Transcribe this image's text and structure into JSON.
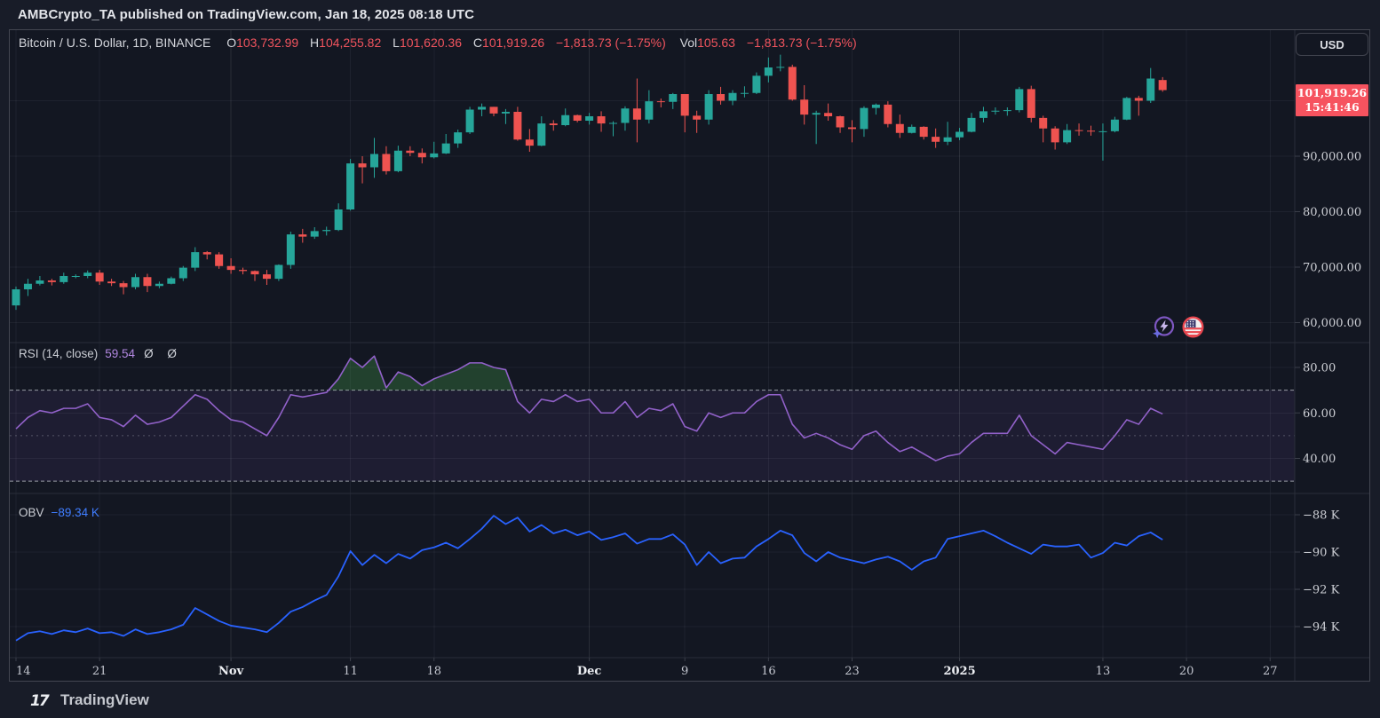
{
  "header": {
    "text": "AMBCrypto_TA published on TradingView.com, Jan 18, 2025 08:18 UTC"
  },
  "legend": {
    "symbol": "Bitcoin / U.S. Dollar, 1D, BINANCE",
    "o_label": "O",
    "o_value": "103,732.99",
    "h_label": "H",
    "h_value": "104,255.82",
    "l_label": "L",
    "l_value": "101,620.36",
    "c_label": "C",
    "c_value": "101,919.26",
    "change": "−1,813.73 (−1.75%)",
    "vol_label": "Vol",
    "vol_value": "105.63",
    "vol_change": "−1,813.73 (−1.75%)"
  },
  "currency_button": "USD",
  "price_badge": {
    "price": "101,919.26",
    "countdown": "15:41:46"
  },
  "rsi_legend": {
    "title": "RSI (14, close)",
    "value": "59.54",
    "extra": "Ø Ø"
  },
  "obv_legend": {
    "title": "OBV",
    "value": "−89.34 K"
  },
  "footer": {
    "brand": "TradingView",
    "logo_mark": "17"
  },
  "colors": {
    "background": "#131722",
    "page": "#181c28",
    "up": "#26a69a",
    "down": "#ef5350",
    "rsi_line": "#9161c9",
    "rsi_band_fill": "rgba(126,87,194,0.10)",
    "rsi_overbought_fill": "rgba(76,175,80,0.28)",
    "obv_line": "#2962ff",
    "badge": "#f6535f",
    "legend_red": "#f1545e",
    "grid": "rgba(240,243,250,0.055)",
    "divider": "#2a2e39",
    "axis_text": "#ced0d6"
  },
  "chart_data": {
    "type": "candlestick",
    "symbol": "BTCUSD BINANCE 1D",
    "pane_layout": [
      "price",
      "rsi",
      "obv"
    ],
    "price_axis": [
      {
        "label": "90,000.00",
        "value": 90000
      },
      {
        "label": "80,000.00",
        "value": 80000
      },
      {
        "label": "70,000.00",
        "value": 70000
      },
      {
        "label": "60,000.00",
        "value": 60000
      }
    ],
    "price_gridlines": [
      100000,
      90000,
      80000,
      70000,
      60000
    ],
    "rsi_axis": [
      {
        "label": "80.00",
        "value": 80
      },
      {
        "label": "60.00",
        "value": 60
      },
      {
        "label": "40.00",
        "value": 40
      }
    ],
    "rsi_levels": {
      "upper": 70,
      "middle": 50,
      "lower": 30
    },
    "obv_axis": [
      {
        "label": "−88 K",
        "value": -88
      },
      {
        "label": "−90 K",
        "value": -90
      },
      {
        "label": "−92 K",
        "value": -92
      },
      {
        "label": "−94 K",
        "value": -94
      }
    ],
    "x_ticks": [
      {
        "label": "14",
        "i": 0,
        "major": false
      },
      {
        "label": "21",
        "i": 7,
        "major": false
      },
      {
        "label": "Nov",
        "i": 18,
        "major": true
      },
      {
        "label": "11",
        "i": 28,
        "major": false
      },
      {
        "label": "18",
        "i": 35,
        "major": false
      },
      {
        "label": "Dec",
        "i": 48,
        "major": true
      },
      {
        "label": "9",
        "i": 56,
        "major": false
      },
      {
        "label": "16",
        "i": 63,
        "major": false
      },
      {
        "label": "23",
        "i": 70,
        "major": false
      },
      {
        "label": "2025",
        "i": 79,
        "major": true
      },
      {
        "label": "13",
        "i": 91,
        "major": false
      },
      {
        "label": "20",
        "i": 98,
        "major": false
      },
      {
        "label": "27",
        "i": 105,
        "major": false
      }
    ],
    "candles_unit": "thousand USD, [open, high, low, close], daily Oct 14 2024 - Jan 18 2025",
    "candles": [
      [
        63.1,
        66.5,
        62.3,
        66.0
      ],
      [
        66.0,
        67.9,
        64.8,
        67.0
      ],
      [
        67.0,
        68.4,
        66.7,
        67.6
      ],
      [
        67.6,
        67.9,
        66.7,
        67.3
      ],
      [
        67.3,
        69.0,
        67.0,
        68.4
      ],
      [
        68.4,
        68.7,
        68.0,
        68.4
      ],
      [
        68.4,
        69.4,
        68.0,
        69.0
      ],
      [
        69.0,
        69.5,
        66.8,
        67.4
      ],
      [
        67.4,
        67.9,
        66.6,
        67.1
      ],
      [
        67.1,
        67.5,
        65.1,
        66.4
      ],
      [
        66.4,
        68.8,
        66.0,
        68.2
      ],
      [
        68.2,
        68.8,
        65.5,
        66.6
      ],
      [
        66.6,
        67.4,
        66.2,
        67.0
      ],
      [
        67.0,
        68.3,
        66.9,
        68.0
      ],
      [
        68.0,
        70.2,
        67.5,
        69.9
      ],
      [
        69.9,
        73.6,
        69.3,
        72.7
      ],
      [
        72.7,
        72.9,
        71.4,
        72.3
      ],
      [
        72.3,
        72.7,
        69.7,
        70.2
      ],
      [
        70.2,
        71.6,
        68.8,
        69.5
      ],
      [
        69.5,
        69.9,
        68.7,
        69.3
      ],
      [
        69.3,
        69.4,
        67.5,
        68.7
      ],
      [
        68.7,
        69.5,
        66.8,
        67.9
      ],
      [
        67.9,
        70.5,
        67.5,
        70.4
      ],
      [
        70.4,
        76.4,
        69.7,
        75.9
      ],
      [
        75.9,
        76.9,
        74.4,
        75.5
      ],
      [
        75.5,
        77.2,
        75.1,
        76.5
      ],
      [
        76.5,
        77.3,
        75.7,
        76.7
      ],
      [
        76.7,
        81.5,
        76.5,
        80.4
      ],
      [
        80.4,
        89.5,
        80.2,
        88.7
      ],
      [
        88.7,
        90.0,
        85.1,
        88.0
      ],
      [
        88.0,
        93.3,
        86.1,
        90.4
      ],
      [
        90.4,
        91.8,
        86.7,
        87.3
      ],
      [
        87.3,
        91.9,
        87.1,
        91.0
      ],
      [
        91.0,
        91.8,
        90.0,
        90.6
      ],
      [
        90.6,
        91.4,
        88.7,
        89.8
      ],
      [
        89.8,
        92.6,
        89.6,
        90.5
      ],
      [
        90.5,
        94.0,
        90.4,
        92.3
      ],
      [
        92.3,
        94.8,
        91.5,
        94.3
      ],
      [
        94.3,
        98.9,
        94.0,
        98.4
      ],
      [
        98.4,
        99.5,
        97.2,
        98.9
      ],
      [
        98.9,
        98.9,
        97.2,
        97.7
      ],
      [
        97.7,
        98.5,
        95.8,
        98.0
      ],
      [
        98.0,
        98.9,
        92.8,
        93.0
      ],
      [
        93.0,
        94.9,
        90.8,
        91.9
      ],
      [
        91.9,
        97.2,
        91.8,
        95.9
      ],
      [
        95.9,
        96.5,
        94.6,
        95.6
      ],
      [
        95.6,
        98.6,
        95.4,
        97.4
      ],
      [
        97.4,
        97.5,
        96.1,
        96.4
      ],
      [
        96.4,
        97.8,
        95.7,
        97.2
      ],
      [
        97.2,
        98.1,
        94.4,
        95.9
      ],
      [
        95.9,
        96.3,
        93.6,
        96.0
      ],
      [
        96.0,
        99.0,
        94.6,
        98.6
      ],
      [
        98.6,
        104.0,
        92.5,
        96.6
      ],
      [
        96.6,
        101.9,
        95.9,
        99.9
      ],
      [
        99.9,
        100.4,
        98.8,
        99.8
      ],
      [
        99.8,
        101.4,
        98.5,
        101.2
      ],
      [
        101.2,
        101.2,
        94.3,
        97.3
      ],
      [
        97.3,
        98.2,
        94.2,
        96.6
      ],
      [
        96.6,
        101.9,
        95.7,
        101.2
      ],
      [
        101.2,
        102.5,
        99.3,
        100.0
      ],
      [
        100.0,
        101.9,
        99.2,
        101.4
      ],
      [
        101.4,
        102.6,
        100.6,
        101.4
      ],
      [
        101.4,
        105.1,
        101.2,
        104.5
      ],
      [
        104.5,
        107.8,
        103.3,
        106.0
      ],
      [
        106.0,
        108.3,
        105.3,
        106.1
      ],
      [
        106.1,
        106.5,
        100.0,
        100.2
      ],
      [
        100.2,
        102.8,
        95.7,
        97.5
      ],
      [
        97.5,
        98.2,
        92.2,
        97.8
      ],
      [
        97.8,
        99.5,
        96.4,
        97.2
      ],
      [
        97.2,
        97.3,
        94.2,
        95.2
      ],
      [
        95.2,
        96.5,
        92.5,
        94.9
      ],
      [
        94.9,
        99.0,
        93.5,
        98.7
      ],
      [
        98.7,
        99.5,
        97.5,
        99.3
      ],
      [
        99.3,
        99.9,
        95.2,
        95.8
      ],
      [
        95.8,
        97.5,
        93.3,
        94.2
      ],
      [
        94.2,
        95.7,
        94.1,
        95.3
      ],
      [
        95.3,
        95.4,
        93.0,
        93.5
      ],
      [
        93.5,
        95.0,
        91.5,
        92.6
      ],
      [
        92.6,
        96.2,
        92.0,
        93.4
      ],
      [
        93.4,
        95.1,
        92.9,
        94.4
      ],
      [
        94.4,
        97.8,
        94.3,
        96.9
      ],
      [
        96.9,
        98.9,
        96.1,
        98.1
      ],
      [
        98.1,
        98.8,
        97.5,
        98.2
      ],
      [
        98.2,
        98.8,
        97.3,
        98.3
      ],
      [
        98.3,
        102.5,
        97.9,
        102.1
      ],
      [
        102.1,
        102.7,
        96.1,
        96.9
      ],
      [
        96.9,
        97.3,
        92.5,
        95.0
      ],
      [
        95.0,
        95.4,
        91.2,
        92.5
      ],
      [
        92.5,
        95.8,
        92.2,
        94.7
      ],
      [
        94.7,
        95.9,
        93.7,
        94.6
      ],
      [
        94.6,
        95.5,
        93.7,
        94.5
      ],
      [
        94.5,
        95.9,
        89.2,
        94.5
      ],
      [
        94.5,
        97.1,
        94.3,
        96.6
      ],
      [
        96.6,
        100.7,
        96.5,
        100.5
      ],
      [
        100.5,
        100.9,
        97.3,
        100.0
      ],
      [
        100.0,
        105.9,
        99.6,
        104.0
      ],
      [
        103.73,
        104.26,
        101.62,
        101.92
      ]
    ],
    "rsi_series": [
      53,
      58,
      61,
      60,
      62,
      62,
      64,
      58,
      57,
      54,
      59,
      55,
      56,
      58,
      63,
      68,
      66,
      61,
      57,
      56,
      53,
      50,
      58,
      68,
      67,
      68,
      69,
      75,
      84,
      80,
      85,
      71,
      78,
      76,
      72,
      75,
      77,
      79,
      82,
      82,
      80,
      79,
      65,
      60,
      66,
      65,
      68,
      65,
      66,
      60,
      60,
      65,
      58,
      62,
      61,
      64,
      54,
      52,
      60,
      58,
      60,
      60,
      65,
      68,
      68,
      55,
      49,
      51,
      49,
      46,
      44,
      50,
      52,
      47,
      43,
      45,
      42,
      39,
      41,
      42,
      47,
      51,
      51,
      51,
      59,
      50,
      46,
      42,
      47,
      46,
      45,
      44,
      50,
      57,
      55,
      62,
      59.54
    ],
    "obv_series_k": [
      -94.75,
      -94.35,
      -94.25,
      -94.4,
      -94.2,
      -94.3,
      -94.1,
      -94.35,
      -94.3,
      -94.5,
      -94.15,
      -94.4,
      -94.3,
      -94.15,
      -93.9,
      -93.0,
      -93.35,
      -93.7,
      -93.95,
      -94.05,
      -94.15,
      -94.3,
      -93.8,
      -93.2,
      -92.95,
      -92.6,
      -92.3,
      -91.3,
      -89.95,
      -90.7,
      -90.15,
      -90.6,
      -90.1,
      -90.35,
      -89.9,
      -89.75,
      -89.5,
      -89.8,
      -89.3,
      -88.75,
      -88.05,
      -88.5,
      -88.15,
      -88.9,
      -88.55,
      -89.0,
      -88.8,
      -89.1,
      -88.9,
      -89.35,
      -89.2,
      -89.0,
      -89.55,
      -89.3,
      -89.3,
      -89.05,
      -89.6,
      -90.7,
      -90.0,
      -90.6,
      -90.35,
      -90.3,
      -89.7,
      -89.3,
      -88.85,
      -89.1,
      -90.05,
      -90.5,
      -90.0,
      -90.3,
      -90.45,
      -90.6,
      -90.4,
      -90.25,
      -90.5,
      -90.95,
      -90.5,
      -90.3,
      -89.3,
      -89.15,
      -89.0,
      -88.85,
      -89.15,
      -89.5,
      -89.8,
      -90.1,
      -89.6,
      -89.7,
      -89.7,
      -89.6,
      -90.3,
      -90.05,
      -89.5,
      -89.65,
      -89.15,
      -88.95,
      -89.34
    ]
  }
}
